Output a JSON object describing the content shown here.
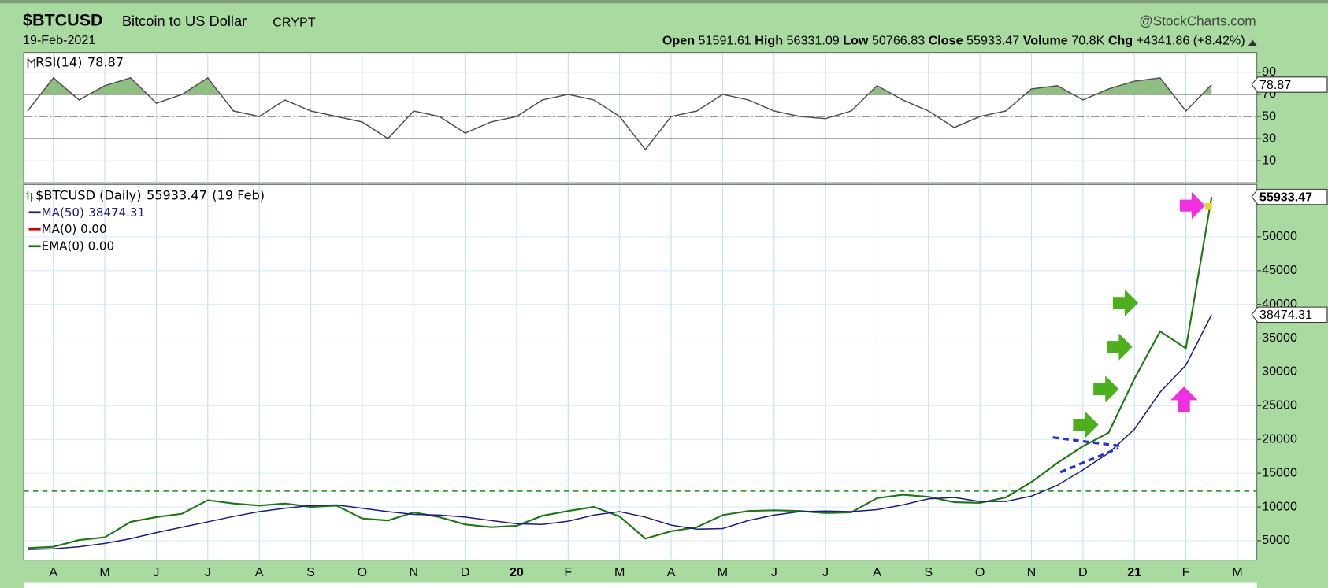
{
  "header": {
    "symbol": "$BTCUSD",
    "name": "Bitcoin to US Dollar",
    "exchange": "CRYPT",
    "date": "19-Feb-2021",
    "brand": "@StockCharts.com",
    "open_label": "Open",
    "open": 51591.61,
    "high_label": "High",
    "high": 56331.09,
    "low_label": "Low",
    "low": 50766.83,
    "close_label": "Close",
    "volume_label": "Volume",
    "volume": "70.8K",
    "chg_label": "Chg",
    "chg": "+4341.86 (+8.42%)"
  },
  "chart_data": [
    {
      "type": "line",
      "title": "RSI(14)",
      "color": "#505050",
      "overbought_fill": "#8fbf80",
      "values": [
        55,
        85,
        65,
        78,
        85,
        62,
        70,
        85,
        55,
        50,
        65,
        55,
        50,
        45,
        30,
        55,
        50,
        35,
        45,
        50,
        65,
        70,
        65,
        50,
        20,
        50,
        55,
        70,
        65,
        55,
        50,
        48,
        55,
        78,
        65,
        55,
        40,
        50,
        55,
        75,
        78,
        65,
        75,
        82,
        85,
        55,
        78.87
      ],
      "ylim": [
        -10,
        108
      ],
      "yticks": [
        10,
        30,
        50,
        70,
        90
      ],
      "levels": [
        30,
        50,
        70
      ],
      "grid": true
    },
    {
      "type": "line",
      "title": "$BTCUSD (Daily)",
      "title_date": "(19 Feb)",
      "categories": [
        null,
        "A",
        null,
        "M",
        null,
        "J",
        null,
        "J",
        null,
        "A",
        null,
        "S",
        null,
        "O",
        null,
        "N",
        null,
        "D",
        null,
        "20",
        null,
        "F",
        null,
        "M",
        null,
        "A",
        null,
        "M",
        null,
        "J",
        null,
        "J",
        null,
        "A",
        null,
        "S",
        null,
        "O",
        null,
        "N",
        null,
        "D",
        null,
        "21",
        null,
        "F",
        null,
        "M"
      ],
      "series": [
        {
          "name": "$BTCUSD",
          "color": "#1c7a10",
          "values": [
            3900,
            4100,
            5100,
            5500,
            7800,
            8500,
            9000,
            11000,
            10500,
            10200,
            10500,
            10000,
            10200,
            8300,
            8000,
            9200,
            8500,
            7400,
            7000,
            7200,
            8700,
            9400,
            10000,
            8600,
            5300,
            6400,
            7000,
            8800,
            9400,
            9500,
            9400,
            9100,
            9200,
            11300,
            11800,
            11500,
            10700,
            10600,
            11400,
            13700,
            16500,
            19000,
            21000,
            29000,
            36000,
            33500,
            55933.47,
            null
          ]
        },
        {
          "name": "MA(50)",
          "color": "#1a1a8c",
          "values": [
            3700,
            3800,
            4100,
            4600,
            5300,
            6200,
            7000,
            7800,
            8600,
            9300,
            9800,
            10200,
            10300,
            9800,
            9300,
            8900,
            8800,
            8500,
            8000,
            7500,
            7400,
            7900,
            8800,
            9300,
            8500,
            7300,
            6700,
            6800,
            8000,
            8800,
            9300,
            9400,
            9300,
            9600,
            10300,
            11200,
            11400,
            10800,
            10800,
            11600,
            13200,
            15500,
            18000,
            21500,
            27000,
            31000,
            38474.31,
            null
          ]
        }
      ],
      "legend_extra": [
        {
          "text": "MA(0) 0.00",
          "color": "#d00000"
        },
        {
          "text": "EMA(0) 0.00",
          "color": "#007a00"
        }
      ],
      "reference_line": {
        "value": 12400,
        "color": "#2aa52a"
      },
      "ylim": [
        2130,
        57770
      ],
      "yticks": [
        5000,
        10000,
        15000,
        20000,
        25000,
        30000,
        35000,
        40000,
        45000,
        50000
      ],
      "grid": true
    }
  ]
}
